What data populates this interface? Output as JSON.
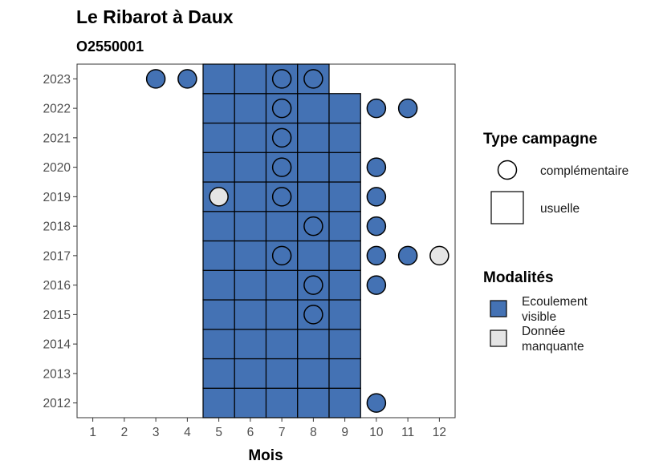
{
  "chart_data": {
    "type": "heatmap",
    "title": "Le Ribarot à Daux",
    "subtitle": "O2550001",
    "xlabel": "Mois",
    "x_ticks": [
      1,
      2,
      3,
      4,
      5,
      6,
      7,
      8,
      9,
      10,
      11,
      12
    ],
    "y_ticks": [
      2012,
      2013,
      2014,
      2015,
      2016,
      2017,
      2018,
      2019,
      2020,
      2021,
      2022,
      2023
    ],
    "xlim": [
      0.5,
      12.5
    ],
    "ylim": [
      2011.5,
      2023.5
    ],
    "colors": {
      "Ecoulement visible": "#4472b4",
      "Donnée manquante": "#e5e5e5"
    },
    "usuelle": [
      {
        "year": 2012,
        "months": [
          5,
          6,
          7,
          8,
          9
        ],
        "modalite": "Ecoulement visible"
      },
      {
        "year": 2013,
        "months": [
          5,
          6,
          7,
          8,
          9
        ],
        "modalite": "Ecoulement visible"
      },
      {
        "year": 2014,
        "months": [
          5,
          6,
          7,
          8,
          9
        ],
        "modalite": "Ecoulement visible"
      },
      {
        "year": 2015,
        "months": [
          5,
          6,
          7,
          8,
          9
        ],
        "modalite": "Ecoulement visible"
      },
      {
        "year": 2016,
        "months": [
          5,
          6,
          7,
          8,
          9
        ],
        "modalite": "Ecoulement visible"
      },
      {
        "year": 2017,
        "months": [
          5,
          6,
          7,
          8,
          9
        ],
        "modalite": "Ecoulement visible"
      },
      {
        "year": 2018,
        "months": [
          5,
          6,
          7,
          8,
          9
        ],
        "modalite": "Ecoulement visible"
      },
      {
        "year": 2019,
        "months": [
          5,
          6,
          7,
          8,
          9
        ],
        "modalite": "Ecoulement visible"
      },
      {
        "year": 2020,
        "months": [
          5,
          6,
          7,
          8,
          9
        ],
        "modalite": "Ecoulement visible"
      },
      {
        "year": 2021,
        "months": [
          5,
          6,
          7,
          8,
          9
        ],
        "modalite": "Ecoulement visible"
      },
      {
        "year": 2022,
        "months": [
          5,
          6,
          7,
          8,
          9
        ],
        "modalite": "Ecoulement visible"
      },
      {
        "year": 2023,
        "months": [
          5,
          6,
          7,
          8
        ],
        "modalite": "Ecoulement visible"
      }
    ],
    "complementaire": [
      {
        "year": 2023,
        "month": 3,
        "modalite": "Ecoulement visible"
      },
      {
        "year": 2023,
        "month": 4,
        "modalite": "Ecoulement visible"
      },
      {
        "year": 2023,
        "month": 7,
        "modalite": "Ecoulement visible"
      },
      {
        "year": 2023,
        "month": 8,
        "modalite": "Ecoulement visible"
      },
      {
        "year": 2022,
        "month": 7,
        "modalite": "Ecoulement visible"
      },
      {
        "year": 2022,
        "month": 10,
        "modalite": "Ecoulement visible"
      },
      {
        "year": 2022,
        "month": 11,
        "modalite": "Ecoulement visible"
      },
      {
        "year": 2021,
        "month": 7,
        "modalite": "Ecoulement visible"
      },
      {
        "year": 2020,
        "month": 7,
        "modalite": "Ecoulement visible"
      },
      {
        "year": 2020,
        "month": 10,
        "modalite": "Ecoulement visible"
      },
      {
        "year": 2019,
        "month": 5,
        "modalite": "Donnée manquante"
      },
      {
        "year": 2019,
        "month": 7,
        "modalite": "Ecoulement visible"
      },
      {
        "year": 2019,
        "month": 10,
        "modalite": "Ecoulement visible"
      },
      {
        "year": 2018,
        "month": 8,
        "modalite": "Ecoulement visible"
      },
      {
        "year": 2018,
        "month": 10,
        "modalite": "Ecoulement visible"
      },
      {
        "year": 2017,
        "month": 7,
        "modalite": "Ecoulement visible"
      },
      {
        "year": 2017,
        "month": 10,
        "modalite": "Ecoulement visible"
      },
      {
        "year": 2017,
        "month": 11,
        "modalite": "Ecoulement visible"
      },
      {
        "year": 2017,
        "month": 12,
        "modalite": "Donnée manquante"
      },
      {
        "year": 2016,
        "month": 8,
        "modalite": "Ecoulement visible"
      },
      {
        "year": 2016,
        "month": 10,
        "modalite": "Ecoulement visible"
      },
      {
        "year": 2015,
        "month": 8,
        "modalite": "Ecoulement visible"
      },
      {
        "year": 2012,
        "month": 10,
        "modalite": "Ecoulement visible"
      }
    ],
    "legend": {
      "placement": "right",
      "type_title": "Type campagne",
      "type_items": [
        "complémentaire",
        "usuelle"
      ],
      "modalites_title": "Modalités",
      "modalites_items": [
        {
          "lines": [
            "Ecoulement",
            "visible"
          ],
          "color": "#4472b4"
        },
        {
          "lines": [
            "Donnée",
            "manquante"
          ],
          "color": "#e5e5e5"
        }
      ]
    },
    "grid": false
  }
}
